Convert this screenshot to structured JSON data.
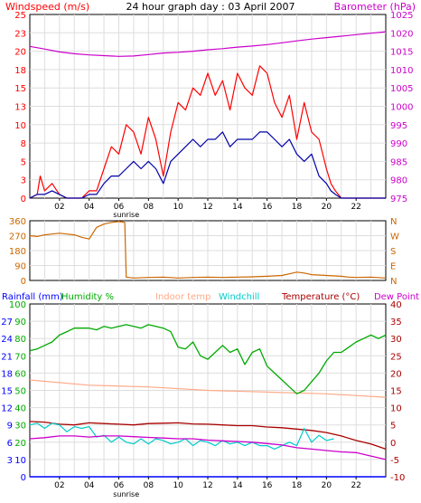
{
  "chart_data": [
    {
      "type": "line",
      "title": "24 hour graph day : 03 April 2007",
      "ylabel_left": "Windspeed (m/s)",
      "ylabel_right": "Barometer (hPa)",
      "x_ticks": [
        "02",
        "04",
        "06",
        "08",
        "10",
        "12",
        "14",
        "16",
        "18",
        "20",
        "22"
      ],
      "x_marker": "sunrise",
      "x_marker_hour": 6.5,
      "ylim_left": [
        0,
        25
      ],
      "ylim_right": [
        975,
        1025
      ],
      "y_ticks_left": [
        "0",
        "3",
        "5",
        "8",
        "10",
        "13",
        "15",
        "18",
        "20",
        "23",
        "25"
      ],
      "y_ticks_right": [
        "975",
        "980",
        "985",
        "990",
        "995",
        "1000",
        "1005",
        "1010",
        "1015",
        "1020",
        "1025"
      ],
      "grid": true,
      "colors": {
        "gust": "#ff0000",
        "average": "#0000aa",
        "barometer": "#cc00cc",
        "axis_left": "#ff0000",
        "axis_right": "#cc00cc"
      },
      "series": [
        {
          "axis": "right",
          "color": "#cc00cc",
          "x": [
            0,
            1,
            2,
            3,
            4,
            5,
            6,
            7,
            8,
            9,
            10,
            11,
            12,
            13,
            14,
            15,
            16,
            17,
            18,
            19,
            20,
            21,
            22,
            23,
            24
          ],
          "values": [
            1016.3,
            1015.6,
            1014.8,
            1014.3,
            1014.0,
            1013.8,
            1013.6,
            1013.7,
            1014.1,
            1014.5,
            1014.7,
            1015.0,
            1015.4,
            1015.7,
            1016.1,
            1016.4,
            1016.8,
            1017.3,
            1017.8,
            1018.3,
            1018.7,
            1019.1,
            1019.5,
            1019.9,
            1020.3
          ]
        },
        {
          "axis": "left",
          "color": "#ff0000",
          "x": [
            0,
            0.5,
            0.7,
            1,
            1.5,
            2,
            2.5,
            3,
            3.5,
            4,
            4.5,
            5,
            5.5,
            6,
            6.5,
            7,
            7.5,
            8,
            8.5,
            9,
            9.5,
            10,
            10.5,
            11,
            11.5,
            12,
            12.5,
            13,
            13.5,
            14,
            14.5,
            15,
            15.5,
            16,
            16.5,
            17,
            17.5,
            18,
            18.5,
            19,
            19.5,
            20,
            20.3,
            20.6,
            21,
            22,
            24
          ],
          "values": [
            0,
            0.5,
            3,
            1,
            2,
            0.5,
            0,
            0,
            0,
            1,
            1,
            4,
            7,
            6,
            10,
            9,
            6,
            11,
            8,
            3,
            9,
            13,
            12,
            15,
            14,
            17,
            14,
            16,
            12,
            17,
            15,
            14,
            18,
            17,
            13,
            11,
            14,
            8,
            13,
            9,
            8,
            4,
            2,
            1,
            0,
            0,
            0
          ]
        },
        {
          "axis": "left",
          "color": "#0000aa",
          "x": [
            0,
            0.5,
            1,
            1.5,
            2,
            2.5,
            3,
            3.5,
            4,
            4.5,
            5,
            5.5,
            6,
            6.5,
            7,
            7.5,
            8,
            8.5,
            9,
            9.5,
            10,
            10.5,
            11,
            11.5,
            12,
            12.5,
            13,
            13.5,
            14,
            14.5,
            15,
            15.5,
            16,
            16.5,
            17,
            17.5,
            18,
            18.5,
            19,
            19.5,
            20,
            20.3,
            20.6,
            21,
            22,
            24
          ],
          "values": [
            0,
            0.5,
            0.5,
            1,
            0.5,
            0,
            0,
            0,
            0.5,
            0.5,
            2,
            3,
            3,
            4,
            5,
            4,
            5,
            4,
            2,
            5,
            6,
            7,
            8,
            7,
            8,
            8,
            9,
            7,
            8,
            8,
            8,
            9,
            9,
            8,
            7,
            8,
            6,
            5,
            6,
            3,
            2,
            1,
            0.5,
            0,
            0,
            0
          ]
        }
      ]
    },
    {
      "type": "line",
      "ylim": [
        0,
        360
      ],
      "y_ticks_left": [
        "0",
        "90",
        "180",
        "270",
        "360"
      ],
      "y_ticks_right": [
        "N",
        "E",
        "S",
        "W",
        "N"
      ],
      "colors": {
        "direction": "#cc6600"
      },
      "series": [
        {
          "color": "#cc6600",
          "x": [
            0,
            0.5,
            1,
            1.5,
            2,
            2.5,
            3,
            3.5,
            4,
            4.5,
            5,
            5.5,
            6,
            6.4,
            6.5,
            7,
            8,
            9,
            10,
            11,
            12,
            13,
            14,
            15,
            16,
            17,
            17.5,
            18,
            18.5,
            19,
            20,
            21,
            21.5,
            22,
            23,
            24
          ],
          "values": [
            270,
            265,
            275,
            280,
            285,
            280,
            275,
            260,
            250,
            320,
            340,
            350,
            355,
            350,
            20,
            15,
            18,
            20,
            15,
            18,
            20,
            18,
            20,
            22,
            25,
            30,
            40,
            50,
            45,
            35,
            30,
            25,
            20,
            18,
            20,
            15
          ]
        }
      ]
    },
    {
      "type": "line",
      "legend": [
        "Rainfall (mm)",
        "Humidity %",
        "Indoor temp",
        "Windchill",
        "Temperature (°C)",
        "Dew Point"
      ],
      "ylim_humidity": [
        0,
        100
      ],
      "ylim_rain": [
        0,
        30
      ],
      "ylim_temp": [
        -10,
        40
      ],
      "y_ticks_humidity": [
        "0",
        "10",
        "20",
        "30",
        "40",
        "50",
        "60",
        "70",
        "80",
        "90",
        "100"
      ],
      "y_ticks_rain": [
        "0",
        "3",
        "6",
        "9",
        "12",
        "15",
        "18",
        "21",
        "24",
        "27",
        "30"
      ],
      "y_ticks_temp": [
        "-10",
        "-5",
        "0",
        "5",
        "10",
        "15",
        "20",
        "25",
        "30",
        "35",
        "40"
      ],
      "colors": {
        "rain": "#0000ff",
        "humidity": "#00aa00",
        "indoor": "#ffaa88",
        "windchill": "#00cccc",
        "temperature": "#aa0000",
        "dewpoint": "#cc00cc"
      },
      "series": [
        {
          "name": "Humidity %",
          "color": "#00aa00",
          "x": [
            0,
            0.5,
            1,
            1.5,
            2,
            2.5,
            3,
            3.5,
            4,
            4.5,
            5,
            5.5,
            6,
            6.5,
            7,
            7.5,
            8,
            8.5,
            9,
            9.5,
            10,
            10.5,
            11,
            11.5,
            12,
            12.5,
            13,
            13.5,
            14,
            14.5,
            15,
            15.5,
            16,
            16.5,
            17,
            17.5,
            18,
            18.5,
            19,
            19.5,
            20,
            20.5,
            21,
            21.5,
            22,
            22.5,
            23,
            23.5,
            24
          ],
          "values": [
            73,
            74,
            76,
            78,
            82,
            84,
            86,
            86,
            86,
            85,
            87,
            86,
            87,
            88,
            87,
            86,
            88,
            87,
            86,
            84,
            75,
            74,
            78,
            70,
            68,
            72,
            76,
            72,
            74,
            65,
            72,
            74,
            64,
            60,
            56,
            52,
            48,
            50,
            55,
            60,
            67,
            72,
            72,
            75,
            78,
            80,
            82,
            80,
            82
          ]
        },
        {
          "name": "Indoor temp",
          "color": "#ffaa88",
          "x": [
            0,
            4,
            8,
            12,
            16,
            20,
            24
          ],
          "values": [
            18,
            16.5,
            16,
            15,
            14.5,
            14,
            13
          ]
        },
        {
          "name": "Temperature (°C)",
          "color": "#aa0000",
          "x": [
            0,
            1,
            2,
            3,
            4,
            5,
            6,
            7,
            8,
            9,
            10,
            11,
            12,
            13,
            14,
            15,
            16,
            17,
            18,
            19,
            20,
            21,
            22,
            23,
            24
          ],
          "values": [
            6,
            5.8,
            5.2,
            5,
            5.6,
            5.4,
            5.2,
            5,
            5.4,
            5.5,
            5.6,
            5.3,
            5.2,
            5.0,
            4.8,
            4.8,
            4.4,
            4.2,
            3.8,
            3.4,
            2.8,
            1.8,
            0.5,
            -0.5,
            -2
          ]
        },
        {
          "name": "Windchill",
          "color": "#00cccc",
          "x": [
            0,
            0.5,
            1,
            1.5,
            2,
            2.5,
            3,
            3.5,
            4,
            4.5,
            5,
            5.5,
            6,
            6.5,
            7,
            7.5,
            8,
            8.5,
            9,
            9.5,
            10,
            10.5,
            11,
            11.5,
            12,
            12.5,
            13,
            13.5,
            14,
            14.5,
            15,
            15.5,
            16,
            16.5,
            17,
            17.5,
            18,
            18.5,
            19,
            19.5,
            20,
            20.5
          ],
          "values": [
            5,
            5.5,
            4,
            5.5,
            5,
            3,
            4.5,
            4,
            4.5,
            1.5,
            2,
            0,
            1.5,
            0,
            -0.5,
            1,
            -0.5,
            1,
            0.5,
            -0.5,
            0,
            1,
            -1,
            0.5,
            0,
            -1,
            0.5,
            -0.5,
            0,
            -1,
            0,
            -1,
            -1,
            -2,
            -1,
            0,
            -1,
            4,
            0,
            2,
            0.5,
            1
          ]
        },
        {
          "name": "Dew Point",
          "color": "#cc00cc",
          "x": [
            0,
            1,
            2,
            3,
            4,
            5,
            6,
            7,
            8,
            9,
            10,
            11,
            12,
            13,
            14,
            15,
            16,
            17,
            18,
            19,
            20,
            21,
            22,
            23,
            24
          ],
          "values": [
            1,
            1.3,
            1.8,
            1.8,
            1.5,
            1.8,
            1.8,
            1.6,
            1.4,
            1.2,
            1.0,
            1.0,
            0.6,
            0.4,
            0.2,
            0.0,
            -0.4,
            -0.8,
            -1.6,
            -2.0,
            -2.4,
            -2.8,
            -3.0,
            -4.0,
            -5.0
          ]
        },
        {
          "name": "Rainfall (mm)",
          "color": "#0000ff",
          "x": [
            0,
            24
          ],
          "values": [
            0,
            0
          ]
        }
      ]
    }
  ]
}
